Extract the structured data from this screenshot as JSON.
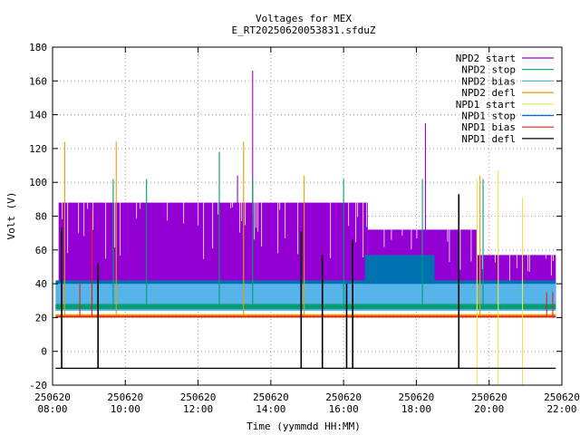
{
  "chart_data": {
    "type": "line",
    "title": "Voltages for MEX",
    "subtitle": "E_RT20250620053831.sfduZ",
    "xlabel": "Time (yymmdd HH:MM)",
    "ylabel": "Volt (V)",
    "grid": true,
    "legend_position": "top-right",
    "xlim": [
      "08:00",
      "22:00"
    ],
    "ylim": [
      -20,
      180
    ],
    "x_ticks": [
      {
        "date": "250620",
        "time": "08:00"
      },
      {
        "date": "250620",
        "time": "10:00"
      },
      {
        "date": "250620",
        "time": "12:00"
      },
      {
        "date": "250620",
        "time": "14:00"
      },
      {
        "date": "250620",
        "time": "16:00"
      },
      {
        "date": "250620",
        "time": "18:00"
      },
      {
        "date": "250620",
        "time": "20:00"
      },
      {
        "date": "250620",
        "time": "22:00"
      }
    ],
    "y_ticks": [
      -20,
      0,
      20,
      40,
      60,
      80,
      100,
      120,
      140,
      160,
      180
    ],
    "series": [
      {
        "name": "NPD2 start",
        "color": "#9400d3",
        "bands": [
          {
            "from": "08:10",
            "to": "16:40",
            "low": 25,
            "high": 88
          },
          {
            "from": "16:40",
            "to": "19:40",
            "low": 25,
            "high": 72
          },
          {
            "from": "19:40",
            "to": "21:50",
            "low": 25,
            "high": 57
          }
        ],
        "spikes": [
          {
            "x": "13:30",
            "y": 166
          },
          {
            "x": "13:05",
            "y": 104
          },
          {
            "x": "18:15",
            "y": 135
          }
        ]
      },
      {
        "name": "NPD2 stop",
        "color": "#009e73",
        "bands": [
          {
            "from": "08:05",
            "to": "21:50",
            "low": 25,
            "high": 28
          }
        ],
        "spikes": [
          {
            "x": "09:40",
            "y": 102
          },
          {
            "x": "10:35",
            "y": 102
          },
          {
            "x": "12:35",
            "y": 118
          },
          {
            "x": "13:30",
            "y": 102
          },
          {
            "x": "16:00",
            "y": 102
          },
          {
            "x": "18:10",
            "y": 102
          },
          {
            "x": "19:50",
            "y": 102
          }
        ]
      },
      {
        "name": "NPD2 bias",
        "color": "#56b4e9",
        "bands": [
          {
            "from": "08:05",
            "to": "21:50",
            "low": 24,
            "high": 40
          }
        ],
        "spikes": []
      },
      {
        "name": "NPD2 defl",
        "color": "#e69f00",
        "bands": [
          {
            "from": "08:05",
            "to": "21:50",
            "low": 21,
            "high": 22
          }
        ],
        "spikes": [
          {
            "x": "08:20",
            "y": 124
          },
          {
            "x": "09:45",
            "y": 124
          },
          {
            "x": "13:15",
            "y": 124
          },
          {
            "x": "14:55",
            "y": 104
          },
          {
            "x": "19:45",
            "y": 104
          }
        ]
      },
      {
        "name": "NPD1 start",
        "color": "#f0e442",
        "bands": [],
        "spikes": [
          {
            "x": "20:15",
            "y": 107
          },
          {
            "x": "20:55",
            "y": 91
          },
          {
            "x": "19:40",
            "y": 102
          }
        ]
      },
      {
        "name": "NPD1 stop",
        "color": "#0072b2",
        "bands": [
          {
            "from": "08:05",
            "to": "21:50",
            "low": 40,
            "high": 42
          },
          {
            "from": "16:35",
            "to": "18:30",
            "low": 40,
            "high": 57
          }
        ],
        "spikes": []
      },
      {
        "name": "NPD1 bias",
        "color": "#e51e10",
        "bands": [
          {
            "from": "08:05",
            "to": "21:50",
            "low": 20,
            "high": 21
          }
        ],
        "spikes": [
          {
            "x": "09:05",
            "y": 83
          },
          {
            "x": "08:45",
            "y": 41
          },
          {
            "x": "21:35",
            "y": 35
          },
          {
            "x": "21:45",
            "y": 35
          }
        ]
      },
      {
        "name": "NPD1 defl",
        "color": "#000000",
        "bands": [
          {
            "from": "08:05",
            "to": "21:50",
            "low": -10,
            "high": -10
          }
        ],
        "spikes": [
          {
            "x": "08:15",
            "y": 73
          },
          {
            "x": "09:15",
            "y": 52
          },
          {
            "x": "14:50",
            "y": 71
          },
          {
            "x": "15:25",
            "y": 57
          },
          {
            "x": "16:05",
            "y": 40
          },
          {
            "x": "16:15",
            "y": 66
          },
          {
            "x": "19:10",
            "y": 93
          }
        ]
      }
    ]
  }
}
